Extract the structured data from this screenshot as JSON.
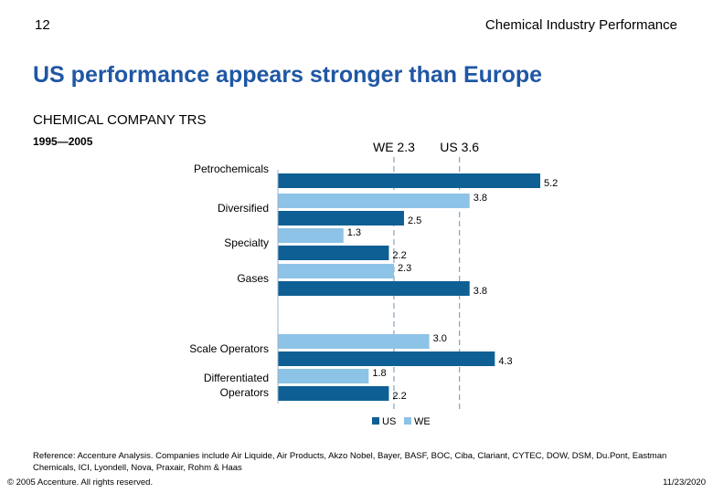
{
  "header": {
    "page_number": "12",
    "title": "Chemical Industry Performance"
  },
  "headline": "US performance appears stronger than Europe",
  "chart_data": {
    "type": "bar",
    "orientation": "horizontal",
    "title": "CHEMICAL COMPANY TRS",
    "subtitle": "1995—2005",
    "categories": [
      "Petrochemicals",
      "Diversified",
      "Specialty",
      "Gases",
      "Scale Operators",
      "Differentiated Operators"
    ],
    "category_label_lines": [
      [
        "Petrochemicals"
      ],
      [
        "Diversified"
      ],
      [
        "Specialty"
      ],
      [
        "Gases"
      ],
      [
        "Scale Operators"
      ],
      [
        "Differentiated",
        "Operators"
      ]
    ],
    "series": [
      {
        "name": "WE",
        "color": "#8dc3e6",
        "values": [
          null,
          3.8,
          1.3,
          2.3,
          3.0,
          1.8
        ],
        "labels": [
          "",
          "3.8",
          "1.3",
          "2.3",
          "3.0",
          "1.8"
        ]
      },
      {
        "name": "US",
        "color": "#0e6094",
        "values": [
          5.2,
          2.5,
          2.2,
          3.8,
          4.3,
          2.2
        ],
        "labels": [
          "5.2",
          "2.5",
          "2.2",
          "3.8",
          "4.3",
          "2.2"
        ]
      }
    ],
    "reference_lines": [
      {
        "label": "WE 2.3",
        "value": 2.3
      },
      {
        "label": "US 3.6",
        "value": 3.6
      }
    ],
    "legend": [
      "US",
      "WE"
    ],
    "legend_position": "bottom",
    "xlim": [
      0,
      5.4
    ]
  },
  "footnote": "Reference: Accenture Analysis.  Companies include Air Liquide, Air Products, Akzo Nobel, Bayer, BASF, BOC, Ciba, Clariant, CYTEC, DOW, DSM, Du.Pont, Eastman Chemicals, ICI, Lyondell, Nova, Praxair, Rohm & Haas",
  "footer": {
    "copyright": "© 2005 Accenture. All rights reserved.",
    "date": "11/23/2020"
  }
}
